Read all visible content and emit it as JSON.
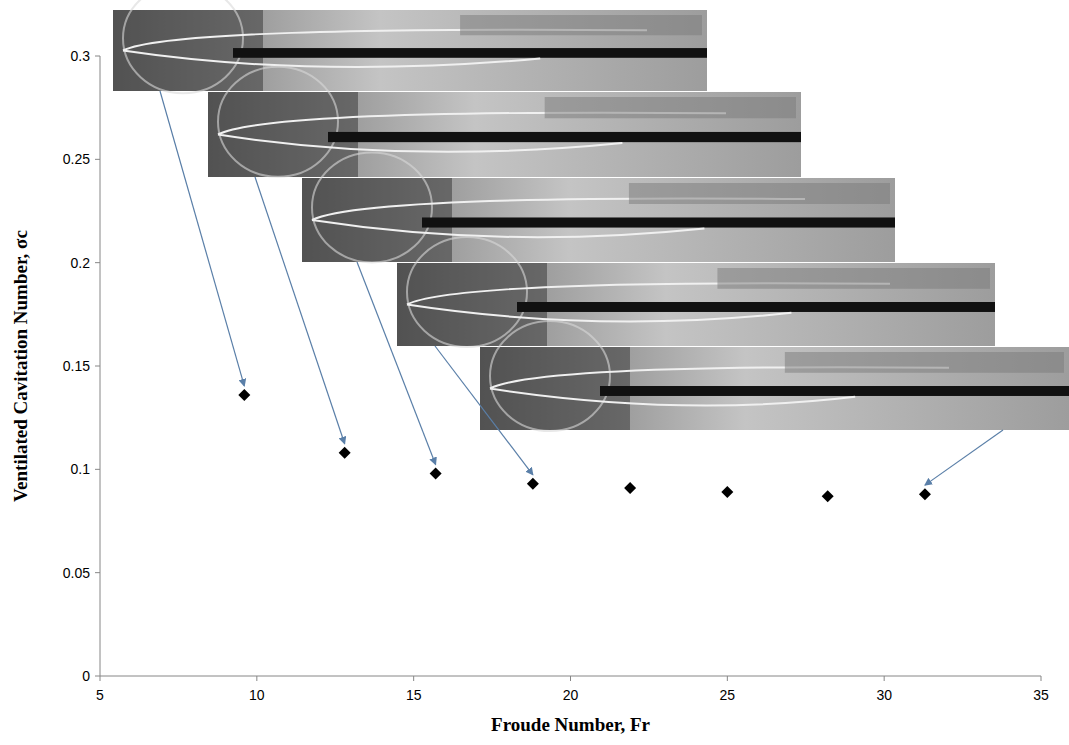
{
  "chart_data": {
    "type": "scatter",
    "x_label": "Froude Number, Fr",
    "y_label": "Ventilated Cavitation Number, σc",
    "x": [
      9.6,
      12.8,
      15.7,
      18.8,
      21.9,
      25.0,
      28.2,
      31.3
    ],
    "values": [
      0.136,
      0.108,
      0.098,
      0.093,
      0.091,
      0.089,
      0.087,
      0.088
    ],
    "color": "#000000",
    "marker": "diamond",
    "xlim": [
      5,
      35
    ],
    "xticks": [
      5,
      10,
      15,
      20,
      25,
      30,
      35
    ],
    "ylim": [
      0,
      0.3
    ],
    "yticks": [
      0,
      0.05,
      0.1,
      0.15,
      0.2,
      0.25,
      0.3
    ],
    "grid": false
  }
}
